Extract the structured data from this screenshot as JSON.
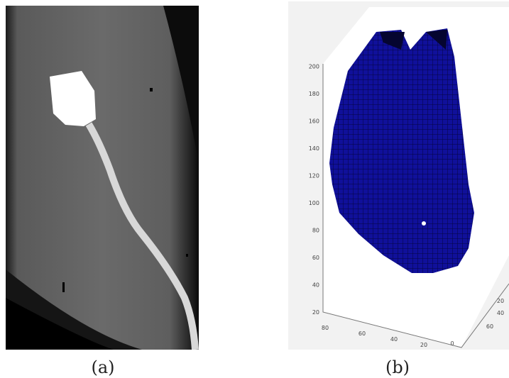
{
  "panels": [
    {
      "caption": "(a)"
    },
    {
      "caption": "(b)",
      "z_ticks": [
        20,
        40,
        60,
        80,
        100,
        120,
        140,
        160,
        180,
        200
      ],
      "x_ticks": [
        80,
        60,
        40,
        20,
        0
      ],
      "y_ticks": [
        20,
        40,
        60
      ]
    }
  ]
}
